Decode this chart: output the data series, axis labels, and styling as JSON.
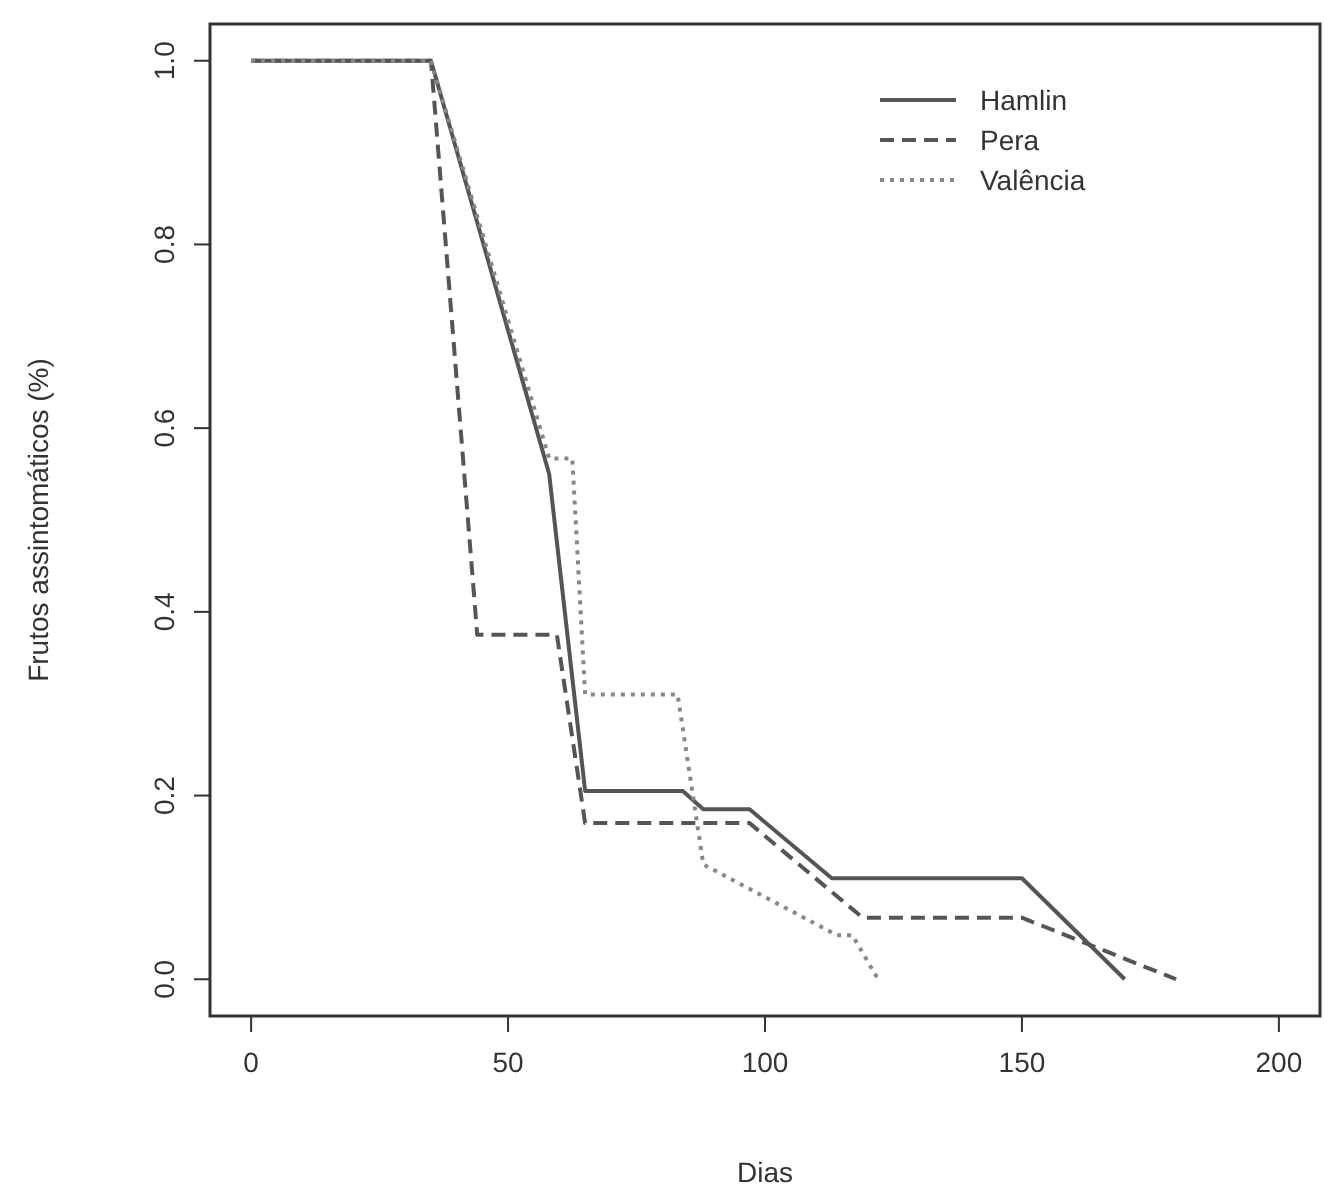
{
  "chart_data": {
    "type": "line",
    "xlabel": "Dias",
    "ylabel": "Frutos assintomáticos (%)",
    "xlim": [
      -8,
      208
    ],
    "ylim": [
      -0.04,
      1.04
    ],
    "xticks": [
      0,
      50,
      100,
      150,
      200
    ],
    "yticks": [
      {
        "value": 0,
        "label": "0.0"
      },
      {
        "value": 0.2,
        "label": "0.2"
      },
      {
        "value": 0.4,
        "label": "0.4"
      },
      {
        "value": 0.6,
        "label": "0.6"
      },
      {
        "value": 0.8,
        "label": "0.8"
      },
      {
        "value": 1,
        "label": "1.0"
      }
    ],
    "grid": false,
    "legend": "top right",
    "marker": "none",
    "series": [
      {
        "name": "Hamlin",
        "color": "#555555",
        "line_style": "solid",
        "x": [
          0,
          35,
          58,
          65,
          84,
          88,
          97,
          113,
          150,
          170
        ],
        "values": [
          1,
          1,
          0.55,
          0.205,
          0.205,
          0.185,
          0.185,
          0.11,
          0.11,
          0
        ]
      },
      {
        "name": "Pera",
        "color": "#555555",
        "line_style": "dashed",
        "x": [
          0,
          35,
          44,
          59.5,
          65,
          97,
          119,
          150,
          180
        ],
        "values": [
          1,
          1,
          0.375,
          0.375,
          0.17,
          0.17,
          0.067,
          0.067,
          0
        ]
      },
      {
        "name": "Valência",
        "color": "#888888",
        "line_style": "dotted",
        "x": [
          0,
          35,
          58,
          62.5,
          65,
          83,
          88,
          114,
          117,
          122
        ],
        "values": [
          1,
          1,
          0.567,
          0.567,
          0.31,
          0.31,
          0.125,
          0.048,
          0.048,
          0
        ]
      }
    ]
  }
}
